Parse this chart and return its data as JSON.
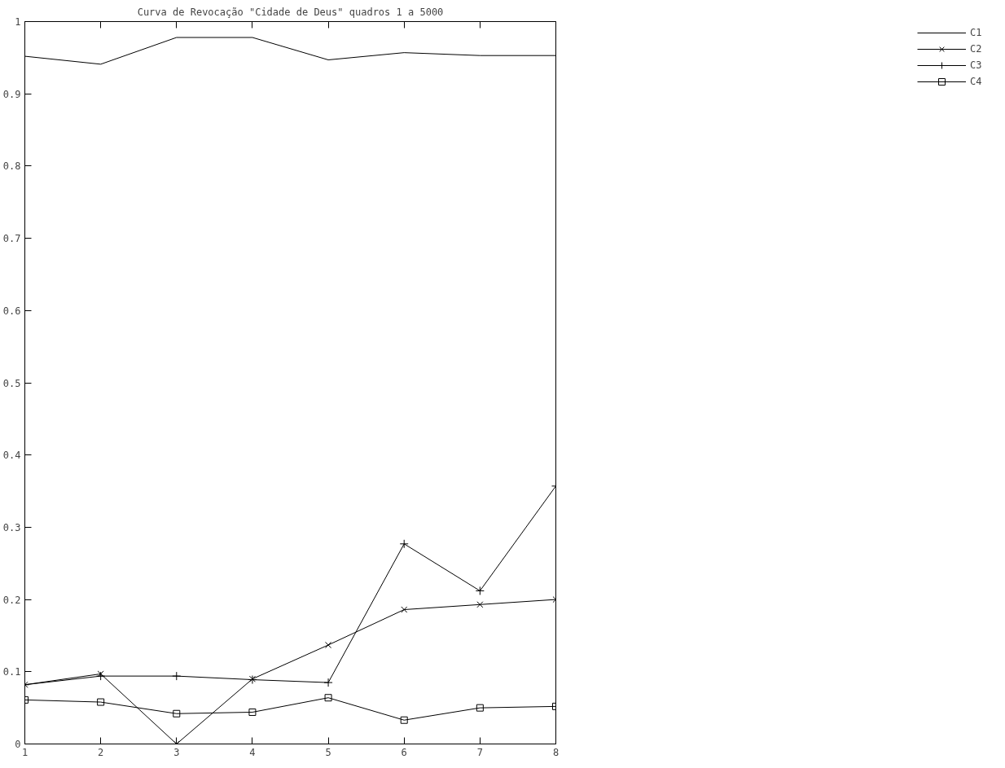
{
  "chart_data": {
    "type": "line",
    "title": "Curva de Revocação \"Cidade de Deus\" quadros 1 a 5000",
    "x": [
      1,
      2,
      3,
      4,
      5,
      6,
      7,
      8
    ],
    "series": [
      {
        "name": "C1",
        "color": "#000000",
        "marker": "none",
        "values": [
          0.952,
          0.941,
          0.978,
          0.978,
          0.947,
          0.957,
          0.953,
          0.953
        ]
      },
      {
        "name": "C2",
        "color": "#000000",
        "marker": "x",
        "values": [
          0.082,
          0.097,
          0.0,
          0.09,
          0.137,
          0.186,
          0.193,
          0.2
        ]
      },
      {
        "name": "C3",
        "color": "#000000",
        "marker": "cross",
        "values": [
          0.082,
          0.094,
          0.094,
          0.089,
          0.085,
          0.277,
          0.212,
          0.357
        ]
      },
      {
        "name": "C4",
        "color": "#000000",
        "marker": "square",
        "values": [
          0.061,
          0.058,
          0.042,
          0.044,
          0.064,
          0.033,
          0.05,
          0.052
        ]
      }
    ],
    "xlim": [
      1,
      8
    ],
    "ylim": [
      0,
      1
    ],
    "xticks": [
      1,
      2,
      3,
      4,
      5,
      6,
      7,
      8
    ],
    "yticks": [
      0,
      {
        "value": 0.1,
        "label": "0.1"
      },
      {
        "value": 0.2,
        "label": "0.2"
      },
      {
        "value": 0.3,
        "label": "0.3"
      },
      {
        "value": 0.4,
        "label": "0.4"
      },
      {
        "value": 0.5,
        "label": "0.5"
      },
      {
        "value": 0.6,
        "label": "0.6"
      },
      {
        "value": 0.7,
        "label": "0.7"
      },
      {
        "value": 0.8,
        "label": "0.8"
      },
      {
        "value": 0.9,
        "label": "0.9"
      },
      1
    ],
    "grid": false,
    "legend": "top right",
    "line_style": "solid"
  }
}
